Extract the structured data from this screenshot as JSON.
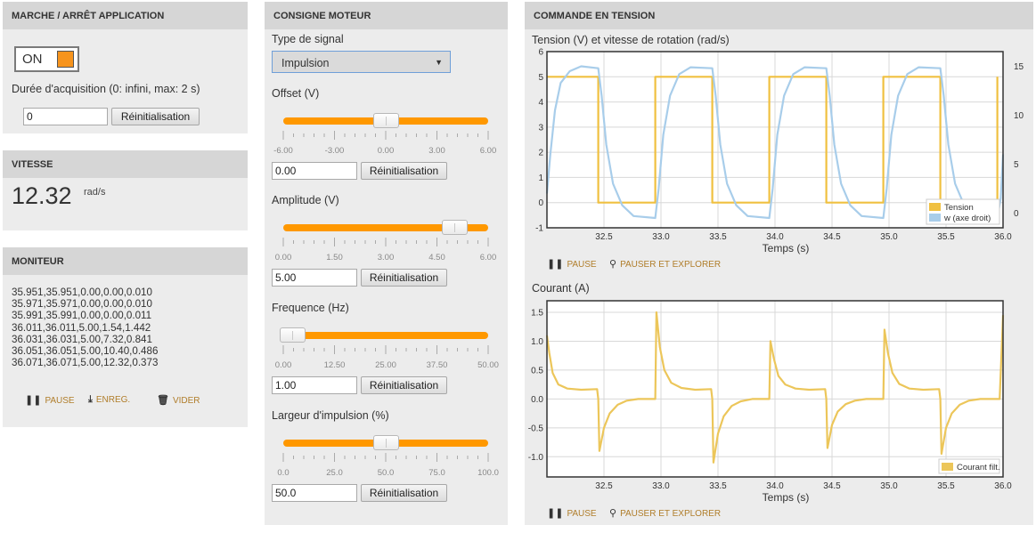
{
  "panel_app": {
    "title": "MARCHE / ARRÊT APPLICATION",
    "toggle_label": "ON",
    "acq_label": "Durée d'acquisition (0: infini, max: 2 s)",
    "acq_value": "0",
    "reset_label": "Réinitialisation"
  },
  "panel_speed": {
    "title": "VITESSE",
    "value": "12.32",
    "unit": "rad/s"
  },
  "panel_monitor": {
    "title": "MONITEUR",
    "lines": [
      "35.951,35.951,0.00,0.00,0.010",
      "35.971,35.971,0.00,0.00,0.010",
      "35.991,35.991,0.00,0.00,0.011",
      "36.011,36.011,5.00,1.54,1.442",
      "36.031,36.031,5.00,7.32,0.841",
      "36.051,36.051,5.00,10.40,0.486",
      "36.071,36.071,5.00,12.32,0.373"
    ],
    "pause_label": "PAUSE",
    "save_label": "ENREG.",
    "clear_label": "VIDER"
  },
  "panel_motor": {
    "title": "CONSIGNE MOTEUR",
    "signal_label": "Type de signal",
    "signal_value": "Impulsion",
    "reset_label": "Réinitialisation",
    "sliders": [
      {
        "label": "Offset (V)",
        "value": "0.00",
        "min": -6,
        "max": 6,
        "current": 0,
        "ticks": [
          "-6.00",
          "-3.00",
          "0.00",
          "3.00",
          "6.00"
        ]
      },
      {
        "label": "Amplitude (V)",
        "value": "5.00",
        "min": 0,
        "max": 6,
        "current": 5,
        "ticks": [
          "0.00",
          "1.50",
          "3.00",
          "4.50",
          "6.00"
        ]
      },
      {
        "label": "Frequence (Hz)",
        "value": "1.00",
        "min": 0,
        "max": 50,
        "current": 1,
        "ticks": [
          "0.00",
          "12.50",
          "25.00",
          "37.50",
          "50.00"
        ]
      },
      {
        "label": "Largeur d'impulsion (%)",
        "value": "50.0",
        "min": 0,
        "max": 100,
        "current": 50,
        "ticks": [
          "0.0",
          "25.0",
          "50.0",
          "75.0",
          "100.0"
        ]
      }
    ]
  },
  "panel_cmd": {
    "title": "COMMANDE EN TENSION",
    "pause_label": "PAUSE",
    "explore_label": "PAUSER ET EXPLORER"
  },
  "colors": {
    "accent": "#ff9800",
    "tension": "#f0c040",
    "speed": "#a8cdea",
    "current": "#ecc65a",
    "action_text": "#b07d2a"
  },
  "chart_data": [
    {
      "type": "line",
      "title": "Tension (V) et vitesse de rotation (rad/s)",
      "xlabel": "Temps (s)",
      "xlim": [
        32.0,
        36.0
      ],
      "x_ticks": [
        "32.5",
        "33.0",
        "33.5",
        "34.0",
        "34.5",
        "35.0",
        "35.5",
        "36.0"
      ],
      "ylim": [
        -1,
        6
      ],
      "y_ticks": [
        "-1",
        "0",
        "1",
        "2",
        "3",
        "4",
        "5",
        "6"
      ],
      "y2lim": [
        -1.5,
        16.5
      ],
      "y2_ticks": [
        "0",
        "5",
        "10",
        "15"
      ],
      "legend_position": "bottom-right",
      "series": [
        {
          "name": "Tension",
          "axis": "left",
          "x": [
            32.0,
            32.45,
            32.45,
            32.95,
            32.95,
            33.45,
            33.45,
            33.95,
            33.95,
            34.45,
            34.45,
            34.95,
            34.95,
            35.45,
            35.45,
            35.95,
            35.95
          ],
          "y": [
            5,
            5,
            0,
            0,
            5,
            5,
            0,
            0,
            5,
            5,
            0,
            0,
            5,
            5,
            0,
            0,
            5
          ]
        },
        {
          "name": "w (axe droit)",
          "axis": "right",
          "x": [
            32.0,
            32.03,
            32.07,
            32.12,
            32.2,
            32.3,
            32.45,
            32.48,
            32.52,
            32.58,
            32.66,
            32.76,
            32.95,
            32.98,
            33.02,
            33.08,
            33.16,
            33.26,
            33.45,
            33.48,
            33.52,
            33.58,
            33.66,
            33.76,
            33.95,
            33.98,
            34.02,
            34.08,
            34.16,
            34.26,
            34.45,
            34.48,
            34.52,
            34.58,
            34.66,
            34.76,
            34.95,
            34.98,
            35.02,
            35.08,
            35.16,
            35.26,
            35.45,
            35.48,
            35.52,
            35.58,
            35.66,
            35.76,
            35.95,
            35.98,
            36.0
          ],
          "y": [
            2,
            6,
            10.5,
            13.3,
            14.5,
            15,
            14.8,
            12,
            7,
            3,
            0.8,
            -0.3,
            -0.5,
            2.5,
            8,
            12,
            14.2,
            14.9,
            14.8,
            12,
            7,
            3,
            0.8,
            -0.3,
            -0.5,
            2.5,
            8,
            12,
            14.2,
            14.9,
            14.8,
            12,
            7,
            3,
            0.8,
            -0.3,
            -0.5,
            2.5,
            8,
            12,
            14.2,
            14.9,
            14.8,
            12,
            7,
            3,
            0.8,
            -0.3,
            -0.5,
            1.5,
            6
          ]
        }
      ]
    },
    {
      "type": "line",
      "title": "Courant (A)",
      "xlabel": "Temps (s)",
      "xlim": [
        32.0,
        36.0
      ],
      "x_ticks": [
        "32.5",
        "33.0",
        "33.5",
        "34.0",
        "34.5",
        "35.0",
        "35.5",
        "36.0"
      ],
      "ylim": [
        -1.35,
        1.7
      ],
      "y_ticks": [
        "-1.0",
        "-0.5",
        "0.0",
        "0.5",
        "1.0",
        "1.5"
      ],
      "legend_position": "bottom-right",
      "series": [
        {
          "name": "Courant filt.",
          "x": [
            32.0,
            32.02,
            32.05,
            32.1,
            32.18,
            32.3,
            32.44,
            32.45,
            32.46,
            32.5,
            32.55,
            32.62,
            32.7,
            32.8,
            32.94,
            32.95,
            32.96,
            32.99,
            33.03,
            33.09,
            33.18,
            33.3,
            33.44,
            33.45,
            33.46,
            33.5,
            33.55,
            33.62,
            33.7,
            33.8,
            33.94,
            33.95,
            33.96,
            33.99,
            34.03,
            34.09,
            34.18,
            34.3,
            34.44,
            34.45,
            34.46,
            34.5,
            34.55,
            34.62,
            34.7,
            34.8,
            34.94,
            34.95,
            34.96,
            34.99,
            35.03,
            35.09,
            35.18,
            35.3,
            35.44,
            35.45,
            35.46,
            35.5,
            35.55,
            35.62,
            35.7,
            35.8,
            35.94,
            35.95,
            35.97,
            36.0
          ],
          "y": [
            1.1,
            0.8,
            0.45,
            0.25,
            0.18,
            0.16,
            0.17,
            0.0,
            -0.9,
            -0.5,
            -0.25,
            -0.1,
            -0.03,
            0.0,
            0.0,
            0.0,
            1.5,
            0.9,
            0.5,
            0.28,
            0.19,
            0.16,
            0.17,
            0.0,
            -1.1,
            -0.6,
            -0.3,
            -0.12,
            -0.04,
            0.0,
            0.0,
            0.0,
            1.0,
            0.7,
            0.4,
            0.25,
            0.18,
            0.16,
            0.17,
            0.0,
            -0.85,
            -0.45,
            -0.22,
            -0.09,
            -0.03,
            0.0,
            0.0,
            0.0,
            1.2,
            0.8,
            0.45,
            0.26,
            0.18,
            0.16,
            0.17,
            0.0,
            -0.95,
            -0.5,
            -0.25,
            -0.1,
            -0.03,
            0.0,
            0.0,
            0.0,
            0.0,
            1.45
          ]
        }
      ]
    }
  ]
}
